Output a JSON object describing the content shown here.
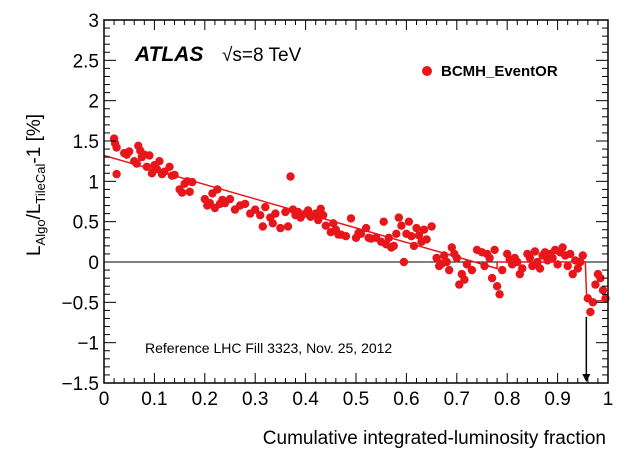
{
  "chart_data": {
    "type": "scatter",
    "experiment": "ATLAS",
    "energy_label": "√s=8 TeV",
    "xlabel": "Cumulative integrated-luminosity fraction",
    "ylabel": "L_Algo/L_TileCal-1 [%]",
    "ylabel_parts": {
      "main": "L",
      "sub1": "Algo",
      "slash": "/L",
      "sub2": "TileCal",
      "rest": "-1 [%]"
    },
    "xlim": [
      0,
      1
    ],
    "ylim": [
      -1.5,
      3
    ],
    "x_ticks": [
      0,
      0.1,
      0.2,
      0.3,
      0.4,
      0.5,
      0.6,
      0.7,
      0.8,
      0.9,
      1
    ],
    "x_tick_labels": [
      "0",
      "0.1",
      "0.2",
      "0.3",
      "0.4",
      "0.5",
      "0.6",
      "0.7",
      "0.8",
      "0.9",
      "1"
    ],
    "y_ticks": [
      -1.5,
      -1,
      -0.5,
      0,
      0.5,
      1,
      1.5,
      2,
      2.5,
      3
    ],
    "y_tick_labels": [
      "−1.5",
      "−1",
      "−0.5",
      "0",
      "0.5",
      "1",
      "1.5",
      "2",
      "2.5",
      "3"
    ],
    "legend": "BCMH_EventOR",
    "legend_position": "top-right",
    "annotation": "Reference LHC Fill 3323, Nov. 25, 2012",
    "reference_marker_x": 0.957,
    "series": [
      {
        "name": "BCMH_EventOR",
        "color": "#e8151b",
        "points": [
          [
            0.02,
            1.53
          ],
          [
            0.022,
            1.47
          ],
          [
            0.025,
            1.42
          ],
          [
            0.025,
            1.09
          ],
          [
            0.04,
            1.35
          ],
          [
            0.045,
            1.33
          ],
          [
            0.05,
            1.37
          ],
          [
            0.06,
            1.25
          ],
          [
            0.065,
            1.22
          ],
          [
            0.068,
            1.44
          ],
          [
            0.072,
            1.38
          ],
          [
            0.075,
            1.3
          ],
          [
            0.08,
            1.33
          ],
          [
            0.085,
            1.18
          ],
          [
            0.09,
            1.32
          ],
          [
            0.095,
            1.1
          ],
          [
            0.1,
            1.2
          ],
          [
            0.105,
            1.15
          ],
          [
            0.11,
            1.25
          ],
          [
            0.115,
            1.09
          ],
          [
            0.12,
            1.12
          ],
          [
            0.13,
            1.18
          ],
          [
            0.135,
            1.07
          ],
          [
            0.14,
            1.08
          ],
          [
            0.15,
            0.9
          ],
          [
            0.155,
            0.86
          ],
          [
            0.16,
            0.97
          ],
          [
            0.165,
            1.0
          ],
          [
            0.17,
            0.87
          ],
          [
            0.175,
            0.99
          ],
          [
            0.2,
            0.78
          ],
          [
            0.205,
            0.7
          ],
          [
            0.21,
            0.73
          ],
          [
            0.215,
            0.85
          ],
          [
            0.22,
            0.67
          ],
          [
            0.225,
            0.9
          ],
          [
            0.23,
            0.72
          ],
          [
            0.235,
            0.77
          ],
          [
            0.24,
            0.73
          ],
          [
            0.25,
            0.78
          ],
          [
            0.26,
            0.65
          ],
          [
            0.27,
            0.7
          ],
          [
            0.28,
            0.72
          ],
          [
            0.29,
            0.6
          ],
          [
            0.3,
            0.65
          ],
          [
            0.31,
            0.58
          ],
          [
            0.315,
            0.44
          ],
          [
            0.32,
            0.68
          ],
          [
            0.33,
            0.55
          ],
          [
            0.335,
            0.48
          ],
          [
            0.34,
            0.6
          ],
          [
            0.35,
            0.42
          ],
          [
            0.36,
            0.62
          ],
          [
            0.365,
            0.44
          ],
          [
            0.37,
            1.06
          ],
          [
            0.375,
            0.65
          ],
          [
            0.38,
            0.58
          ],
          [
            0.385,
            0.62
          ],
          [
            0.39,
            0.55
          ],
          [
            0.4,
            0.6
          ],
          [
            0.405,
            0.64
          ],
          [
            0.41,
            0.56
          ],
          [
            0.42,
            0.6
          ],
          [
            0.425,
            0.52
          ],
          [
            0.43,
            0.66
          ],
          [
            0.435,
            0.58
          ],
          [
            0.44,
            0.45
          ],
          [
            0.45,
            0.37
          ],
          [
            0.455,
            0.48
          ],
          [
            0.46,
            0.4
          ],
          [
            0.465,
            0.34
          ],
          [
            0.47,
            0.34
          ],
          [
            0.48,
            0.32
          ],
          [
            0.49,
            0.54
          ],
          [
            0.5,
            0.3
          ],
          [
            0.505,
            0.36
          ],
          [
            0.51,
            0.35
          ],
          [
            0.52,
            0.42
          ],
          [
            0.525,
            0.3
          ],
          [
            0.53,
            0.29
          ],
          [
            0.54,
            0.3
          ],
          [
            0.55,
            0.25
          ],
          [
            0.555,
            0.5
          ],
          [
            0.56,
            0.22
          ],
          [
            0.565,
            0.3
          ],
          [
            0.57,
            0.18
          ],
          [
            0.575,
            0.2
          ],
          [
            0.58,
            0.35
          ],
          [
            0.585,
            0.55
          ],
          [
            0.59,
            0.45
          ],
          [
            0.595,
            0.0
          ],
          [
            0.6,
            0.35
          ],
          [
            0.605,
            0.5
          ],
          [
            0.61,
            0.32
          ],
          [
            0.615,
            0.2
          ],
          [
            0.62,
            0.42
          ],
          [
            0.625,
            0.33
          ],
          [
            0.63,
            0.25
          ],
          [
            0.635,
            0.4
          ],
          [
            0.64,
            0.28
          ],
          [
            0.65,
            0.44
          ],
          [
            0.66,
            0.05
          ],
          [
            0.665,
            -0.05
          ],
          [
            0.67,
            -0.02
          ],
          [
            0.675,
            0.08
          ],
          [
            0.68,
            0.0
          ],
          [
            0.685,
            -0.1
          ],
          [
            0.69,
            0.18
          ],
          [
            0.695,
            0.1
          ],
          [
            0.7,
            0.05
          ],
          [
            0.705,
            -0.28
          ],
          [
            0.71,
            -0.15
          ],
          [
            0.715,
            -0.22
          ],
          [
            0.72,
            -0.03
          ],
          [
            0.73,
            -0.1
          ],
          [
            0.74,
            0.15
          ],
          [
            0.75,
            0.12
          ],
          [
            0.755,
            -0.05
          ],
          [
            0.76,
            0.1
          ],
          [
            0.765,
            0.05
          ],
          [
            0.77,
            -0.2
          ],
          [
            0.775,
            0.15
          ],
          [
            0.78,
            -0.3
          ],
          [
            0.785,
            -0.4
          ],
          [
            0.79,
            -0.1
          ],
          [
            0.8,
            0.1
          ],
          [
            0.805,
            0.03
          ],
          [
            0.81,
            -0.03
          ],
          [
            0.815,
            0.05
          ],
          [
            0.82,
            0.0
          ],
          [
            0.825,
            -0.15
          ],
          [
            0.83,
            -0.08
          ],
          [
            0.84,
            0.1
          ],
          [
            0.845,
            0.05
          ],
          [
            0.85,
            -0.05
          ],
          [
            0.855,
            0.13
          ],
          [
            0.86,
            0.0
          ],
          [
            0.865,
            -0.08
          ],
          [
            0.87,
            0.08
          ],
          [
            0.875,
            0.12
          ],
          [
            0.88,
            0.02
          ],
          [
            0.885,
            0.1
          ],
          [
            0.89,
            0.05
          ],
          [
            0.895,
            0.15
          ],
          [
            0.9,
            -0.03
          ],
          [
            0.905,
            0.12
          ],
          [
            0.91,
            0.18
          ],
          [
            0.915,
            0.08
          ],
          [
            0.92,
            -0.05
          ],
          [
            0.925,
            0.1
          ],
          [
            0.93,
            -0.15
          ],
          [
            0.935,
            0.02
          ],
          [
            0.94,
            -0.08
          ],
          [
            0.945,
            0.0
          ],
          [
            0.95,
            0.08
          ],
          [
            0.96,
            -0.45
          ],
          [
            0.965,
            -0.62
          ],
          [
            0.97,
            -0.5
          ],
          [
            0.975,
            -0.28
          ],
          [
            0.98,
            -0.15
          ],
          [
            0.985,
            -0.2
          ],
          [
            0.99,
            -0.35
          ],
          [
            0.995,
            -0.45
          ]
        ]
      }
    ],
    "fit_line": {
      "color": "#e8151b",
      "points": [
        [
          0.0,
          1.32
        ],
        [
          0.78,
          -0.08
        ],
        [
          0.78,
          0.0
        ],
        [
          0.955,
          0.0
        ],
        [
          0.958,
          -0.48
        ],
        [
          1.0,
          -0.48
        ]
      ]
    }
  }
}
